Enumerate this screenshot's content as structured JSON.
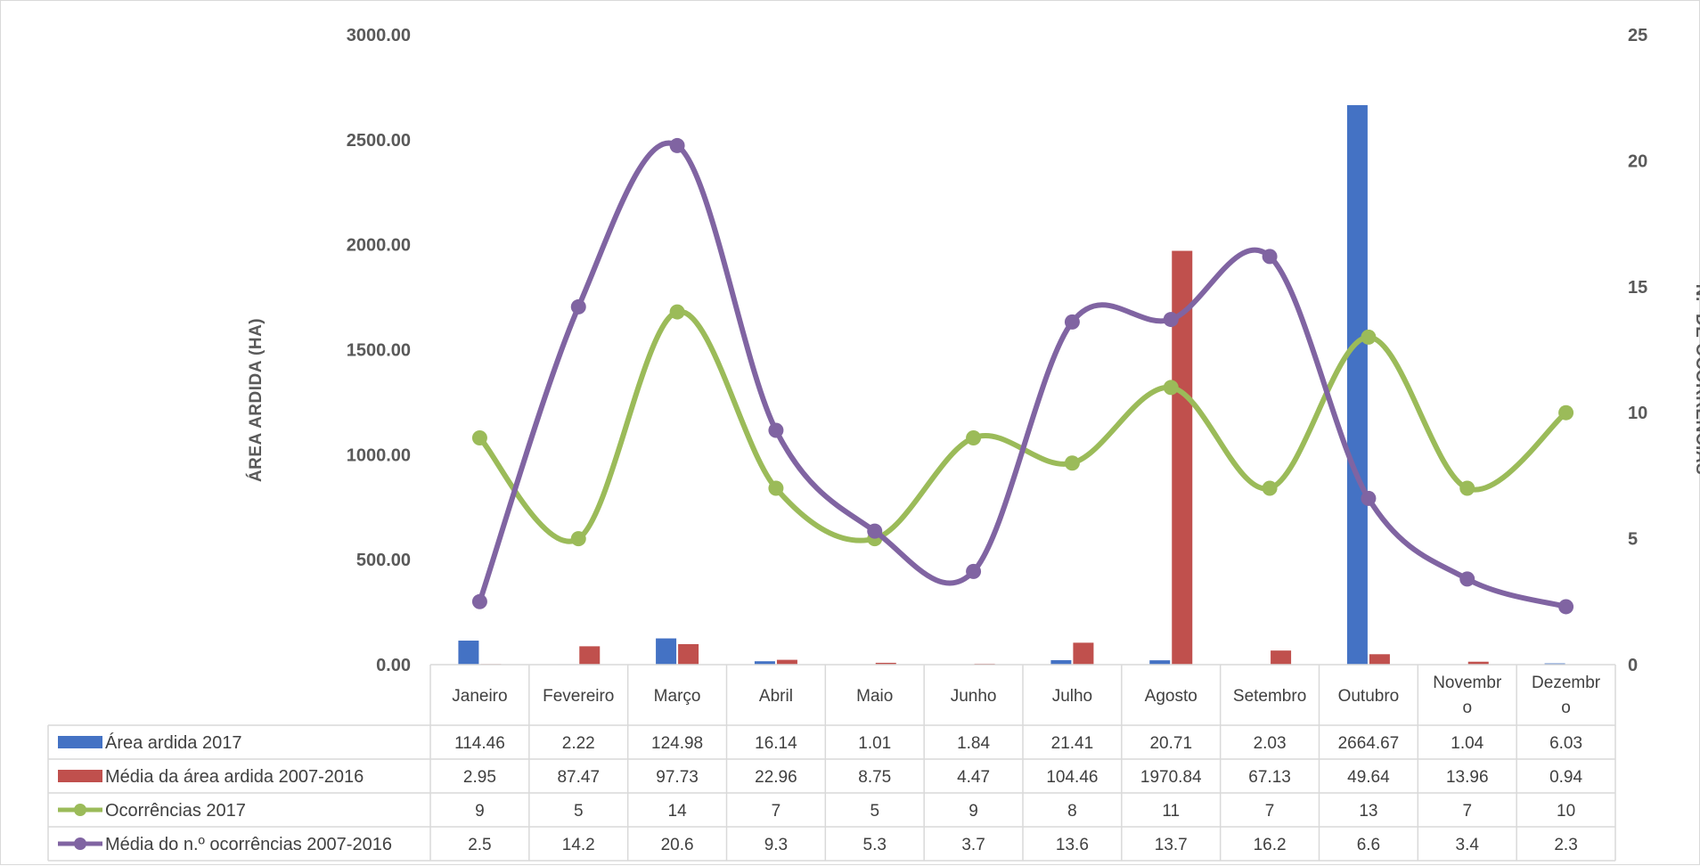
{
  "chart_data": {
    "type": "bar",
    "categories": [
      [
        "Janeiro"
      ],
      [
        "Fevereiro"
      ],
      [
        "Março"
      ],
      [
        "Abril"
      ],
      [
        "Maio"
      ],
      [
        "Junho"
      ],
      [
        "Julho"
      ],
      [
        "Agosto"
      ],
      [
        "Setembro"
      ],
      [
        "Outubro"
      ],
      [
        "Novembr",
        "o"
      ],
      [
        "Dezembr",
        "o"
      ]
    ],
    "left_axis": {
      "label": "ÁREA ARDIDA (HA)",
      "ylim": [
        0,
        3000
      ],
      "ticks": [
        "0.00",
        "500.00",
        "1000.00",
        "1500.00",
        "2000.00",
        "2500.00",
        "3000.00"
      ]
    },
    "right_axis": {
      "label": "N.º DE OCORRÊNCIAS",
      "ylim": [
        0,
        25
      ],
      "ticks": [
        "0",
        "5",
        "10",
        "15",
        "20",
        "25"
      ]
    },
    "series": [
      {
        "name": "Área ardida 2017",
        "type": "bar",
        "axis": "left",
        "color": "#4472c4",
        "values": [
          114.46,
          2.22,
          124.98,
          16.14,
          1.01,
          1.84,
          21.41,
          20.71,
          2.03,
          2664.67,
          1.04,
          6.03
        ],
        "labels": [
          "114.46",
          "2.22",
          "124.98",
          "16.14",
          "1.01",
          "1.84",
          "21.41",
          "20.71",
          "2.03",
          "2664.67",
          "1.04",
          "6.03"
        ]
      },
      {
        "name": "Média da área ardida 2007-2016",
        "type": "bar",
        "axis": "left",
        "color": "#c0504d",
        "values": [
          2.95,
          87.47,
          97.73,
          22.96,
          8.75,
          4.47,
          104.46,
          1970.84,
          67.13,
          49.64,
          13.96,
          0.94
        ],
        "labels": [
          "2.95",
          "87.47",
          "97.73",
          "22.96",
          "8.75",
          "4.47",
          "104.46",
          "1970.84",
          "67.13",
          "49.64",
          "13.96",
          "0.94"
        ]
      },
      {
        "name": "Ocorrências 2017",
        "type": "line",
        "axis": "right",
        "color": "#9bbb59",
        "values": [
          9,
          5,
          14,
          7,
          5,
          9,
          8,
          11,
          7,
          13,
          7,
          10
        ],
        "labels": [
          "9",
          "5",
          "14",
          "7",
          "5",
          "9",
          "8",
          "11",
          "7",
          "13",
          "7",
          "10"
        ]
      },
      {
        "name": "Média do n.º ocorrências 2007-2016",
        "type": "line",
        "axis": "right",
        "color": "#8064a2",
        "values": [
          2.5,
          14.2,
          20.6,
          9.3,
          5.3,
          3.7,
          13.6,
          13.7,
          16.2,
          6.6,
          3.4,
          2.3
        ],
        "labels": [
          "2.5",
          "14.2",
          "20.6",
          "9.3",
          "5.3",
          "3.7",
          "13.6",
          "13.7",
          "16.2",
          "6.6",
          "3.4",
          "2.3"
        ]
      }
    ],
    "data_table": true,
    "grid": false,
    "colors": {
      "gridline": "#d9d9d9",
      "text": "#404040",
      "axis_text": "#595959"
    }
  }
}
